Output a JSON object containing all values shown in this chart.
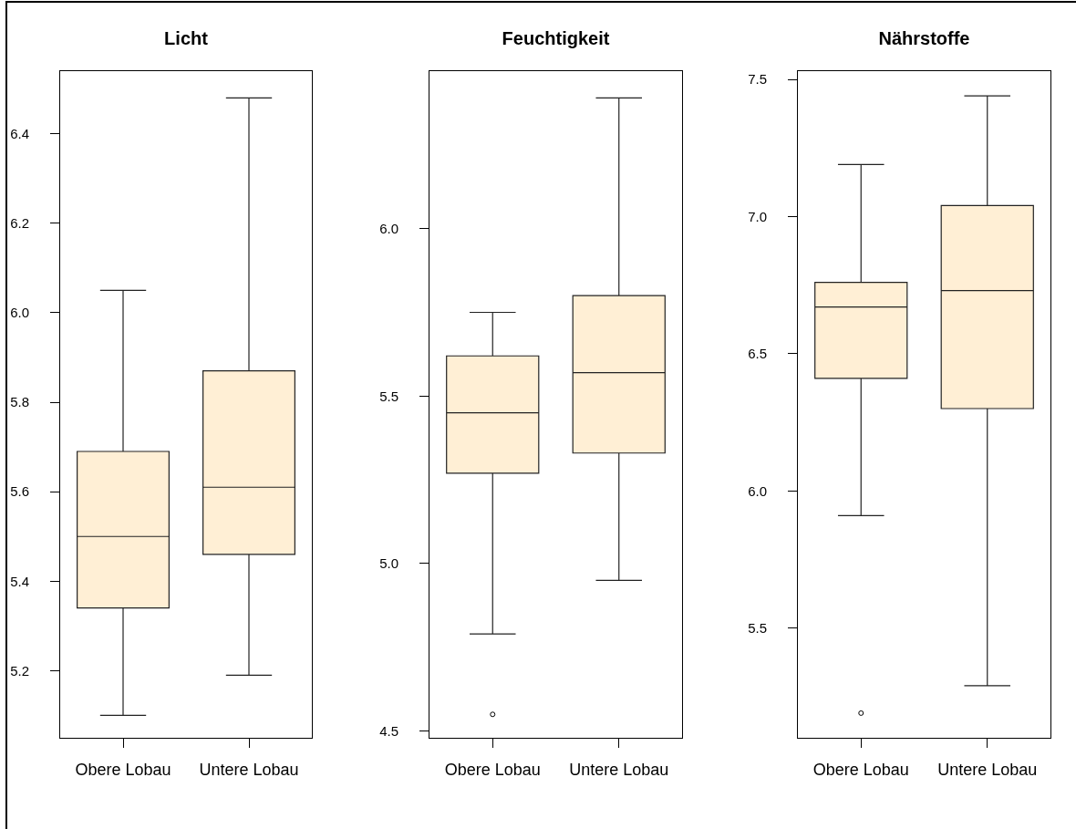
{
  "chart_data": [
    {
      "type": "box",
      "title": "Licht",
      "categories": [
        "Obere Lobau",
        "Untere Lobau"
      ],
      "series": [
        {
          "color": "#ffefd5",
          "boxes": [
            {
              "low": 5.1,
              "q1": 5.34,
              "median": 5.5,
              "q3": 5.69,
              "high": 6.05
            },
            {
              "low": 5.19,
              "q1": 5.46,
              "median": 5.61,
              "q3": 5.87,
              "high": 6.48
            }
          ]
        }
      ],
      "ylim": [
        5.05,
        6.54
      ],
      "yticks": [
        5.2,
        5.4,
        5.6,
        5.8,
        {
          "value": 6,
          "label": "6.0"
        },
        6.2,
        6.4
      ]
    },
    {
      "type": "box",
      "title": "Feuchtigkeit",
      "categories": [
        "Obere Lobau",
        "Untere Lobau"
      ],
      "series": [
        {
          "color": "#ffefd5",
          "boxes": [
            {
              "low": 4.79,
              "q1": 5.27,
              "median": 5.45,
              "q3": 5.62,
              "high": 5.75,
              "outliers": [
                4.55
              ]
            },
            {
              "low": 4.95,
              "q1": 5.33,
              "median": 5.57,
              "q3": 5.8,
              "high": 6.39
            }
          ]
        }
      ],
      "ylim": [
        4.48,
        6.47
      ],
      "yticks": [
        4.5,
        {
          "value": 5,
          "label": "5.0"
        },
        5.5,
        {
          "value": 6,
          "label": "6.0"
        }
      ]
    },
    {
      "type": "box",
      "title": "Nährstoffe",
      "categories": [
        "Obere Lobau",
        "Untere Lobau"
      ],
      "series": [
        {
          "color": "#ffefd5",
          "boxes": [
            {
              "low": 5.91,
              "q1": 6.41,
              "median": 6.67,
              "q3": 6.76,
              "high": 7.19,
              "outliers": [
                5.19
              ]
            },
            {
              "low": 5.29,
              "q1": 6.3,
              "median": 6.73,
              "q3": 7.04,
              "high": 7.44
            }
          ]
        }
      ],
      "ylim": [
        5.1,
        7.53
      ],
      "yticks": [
        5.5,
        {
          "value": 6,
          "label": "6.0"
        },
        6.5,
        {
          "value": 7,
          "label": "7.0"
        },
        7.5
      ]
    }
  ]
}
